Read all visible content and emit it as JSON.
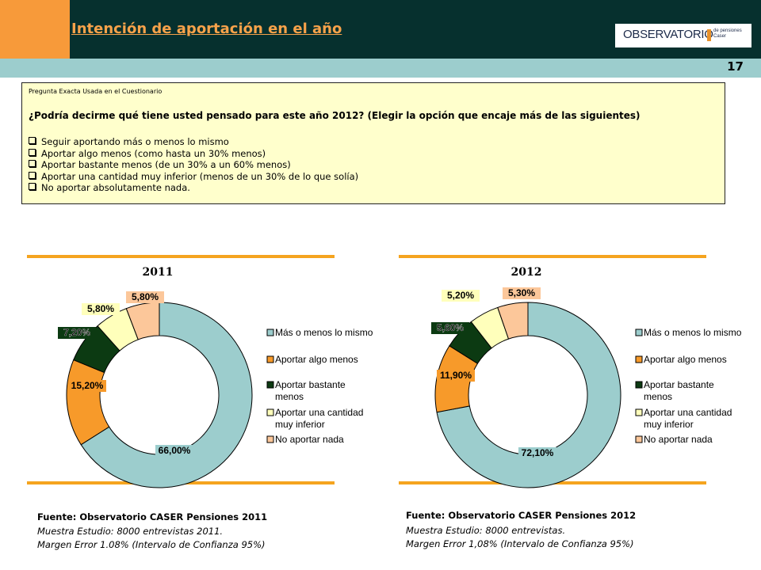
{
  "header": {
    "title": "Intención de aportación en el año",
    "logo_text": "OBSERVATORIO",
    "logo_sub1": "de pensiones",
    "logo_sub2": "Caser",
    "page_number": "17"
  },
  "question": {
    "label": "Pregunta Exacta Usada en el Cuestionario",
    "text": "¿Podría decirme qué tiene usted pensado para este año 2012? (Elegir la opción que encaje más de las siguientes)",
    "options": [
      "Seguir aportando más o menos lo mismo",
      "Aportar algo menos (como hasta un 30% menos)",
      "Aportar bastante menos (de un 30% a un 60% menos)",
      "Aportar una cantidad muy inferior (menos de un 30% de lo que solía)",
      "No aportar absolutamente nada."
    ]
  },
  "chart_data": [
    {
      "type": "pie",
      "title": "2011",
      "categories": [
        "Más o menos lo mismo",
        "Aportar algo menos",
        "Aportar bastante menos",
        "Aportar una cantidad muy inferior",
        "No aportar nada"
      ],
      "values": [
        66.0,
        15.2,
        7.2,
        5.8,
        5.8
      ],
      "labels": [
        "66,00%",
        "15,20%",
        "7,20%",
        "5,80%",
        "5,80%"
      ],
      "legend": [
        [
          "Más o menos lo mismo"
        ],
        [
          "Aportar algo menos"
        ],
        [
          "Aportar bastante",
          "menos"
        ],
        [
          "Aportar una cantidad",
          "muy inferior"
        ],
        [
          "No aportar nada"
        ]
      ],
      "colors": [
        "#9ccdcd",
        "#f79a2a",
        "#0c3a12",
        "#ffffbb",
        "#fcc79a"
      ],
      "legend_position": "right"
    },
    {
      "type": "pie",
      "title": "2012",
      "categories": [
        "Más o menos lo mismo",
        "Aportar algo menos",
        "Aportar bastante menos",
        "Aportar una cantidad muy inferior",
        "No aportar nada"
      ],
      "values": [
        72.1,
        11.9,
        5.6,
        5.2,
        5.3
      ],
      "labels": [
        "72,10%",
        "11,90%",
        "5,60%",
        "5,20%",
        "5,30%"
      ],
      "legend": [
        [
          "Más o menos lo mismo"
        ],
        [
          "Aportar algo menos"
        ],
        [
          "Aportar bastante",
          "menos"
        ],
        [
          "Aportar una cantidad",
          "muy inferior"
        ],
        [
          "No aportar nada"
        ]
      ],
      "colors": [
        "#9ccdcd",
        "#f79a2a",
        "#0c3a12",
        "#ffffbb",
        "#fcc79a"
      ],
      "legend_position": "right"
    }
  ],
  "sources": [
    {
      "source": "Fuente: Observatorio CASER Pensiones 2011",
      "sample": "Muestra Estudio: 8000 entrevistas 2011.",
      "margin": "Margen Error 1.08% (Intervalo de Confianza 95%)"
    },
    {
      "source": "Fuente: Observatorio CASER Pensiones 2012",
      "sample": "Muestra Estudio: 8000 entrevistas.",
      "margin": "Margen Error 1,08% (Intervalo de Confianza 95%)"
    }
  ]
}
